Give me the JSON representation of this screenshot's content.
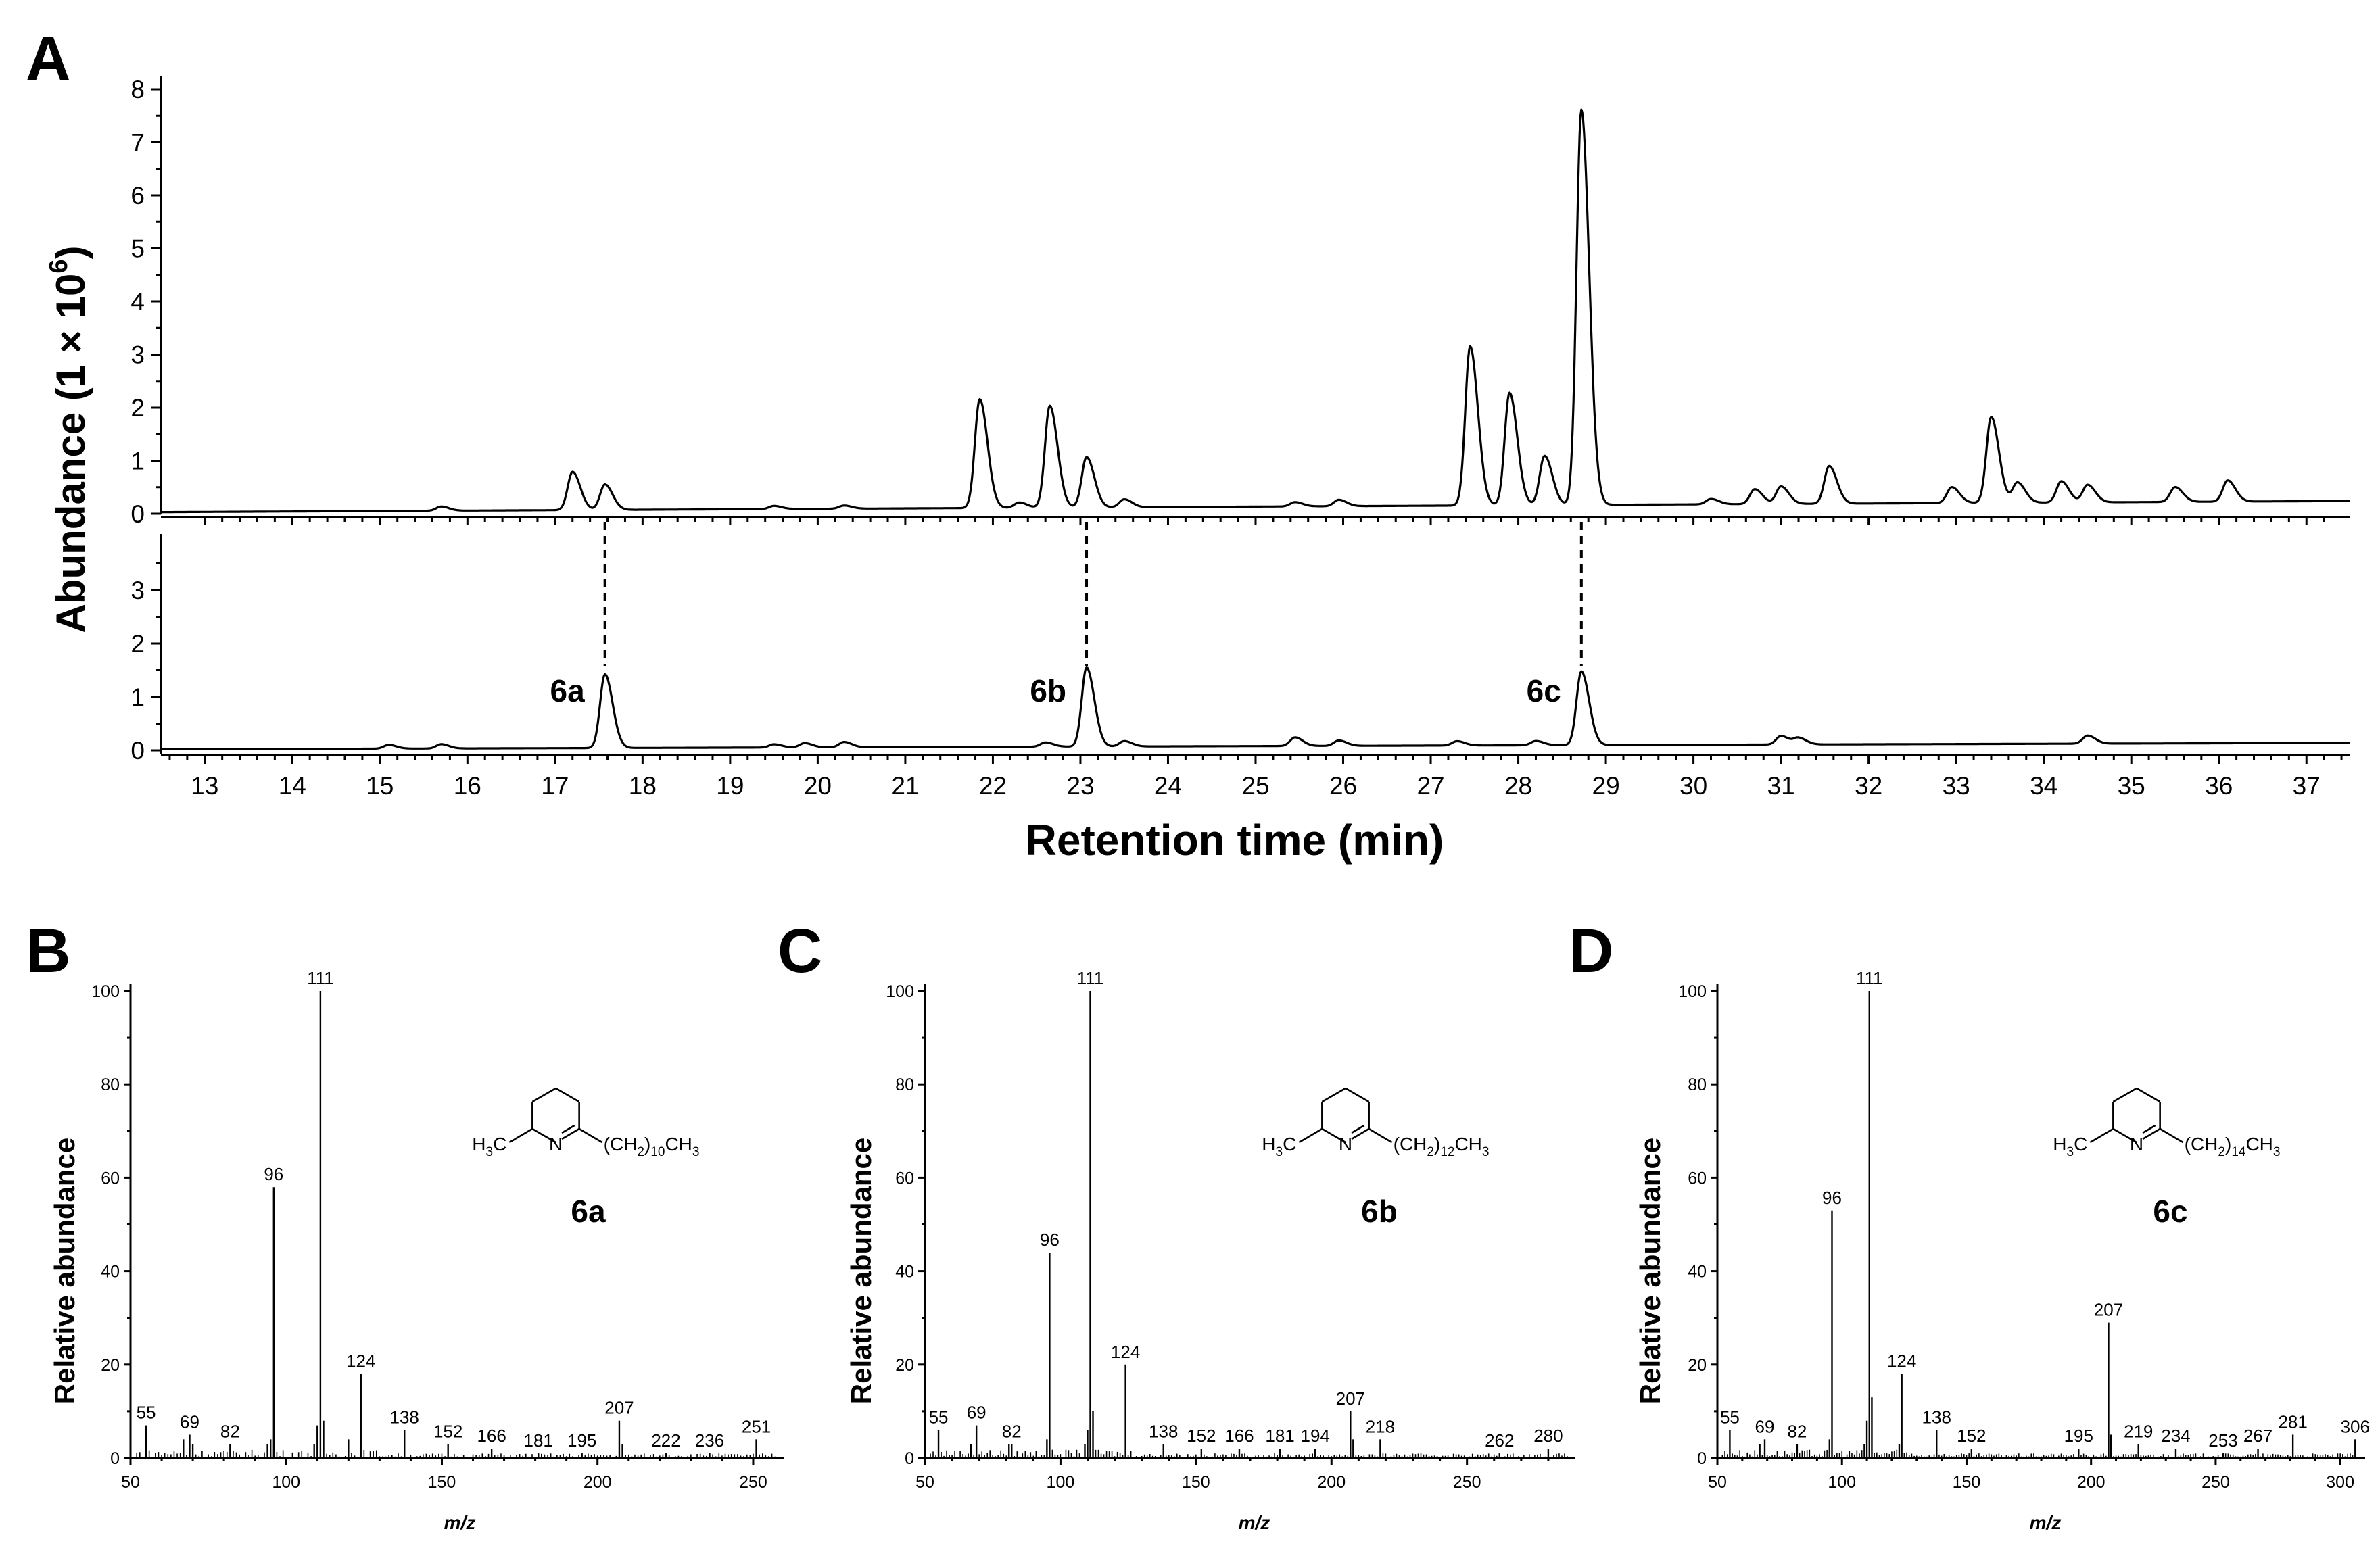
{
  "panels": {
    "A": "A",
    "B": "B",
    "C": "C",
    "D": "D"
  },
  "chart_data": [
    {
      "type": "line",
      "panel": "A",
      "ylabel_main": "Abundance (1 × 10",
      "ylabel_sup": "6",
      "ylabel_end": ")",
      "xlabel": "Retention time (min)",
      "xlim": [
        12.5,
        37.5
      ],
      "xticks": [
        13,
        14,
        15,
        16,
        17,
        18,
        19,
        20,
        21,
        22,
        23,
        24,
        25,
        26,
        27,
        28,
        29,
        30,
        31,
        32,
        33,
        34,
        35,
        36,
        37
      ],
      "top_trace": {
        "ylim": [
          0,
          8.3
        ],
        "yticks": [
          0,
          1,
          2,
          3,
          4,
          5,
          6,
          7,
          8
        ],
        "baseline_start": 0.03,
        "baseline_end": 0.24,
        "peaks": [
          {
            "x": 15.7,
            "y": 0.08
          },
          {
            "x": 17.2,
            "y": 0.72
          },
          {
            "x": 17.57,
            "y": 0.48
          },
          {
            "x": 19.5,
            "y": 0.06
          },
          {
            "x": 20.3,
            "y": 0.06
          },
          {
            "x": 21.85,
            "y": 2.05
          },
          {
            "x": 22.3,
            "y": 0.1
          },
          {
            "x": 22.65,
            "y": 1.92
          },
          {
            "x": 23.07,
            "y": 0.95
          },
          {
            "x": 23.5,
            "y": 0.15
          },
          {
            "x": 25.45,
            "y": 0.08
          },
          {
            "x": 25.95,
            "y": 0.12
          },
          {
            "x": 27.45,
            "y": 3.0
          },
          {
            "x": 27.9,
            "y": 2.12
          },
          {
            "x": 28.3,
            "y": 0.93
          },
          {
            "x": 28.72,
            "y": 7.45
          },
          {
            "x": 30.2,
            "y": 0.1
          },
          {
            "x": 30.7,
            "y": 0.28
          },
          {
            "x": 31.0,
            "y": 0.33
          },
          {
            "x": 31.55,
            "y": 0.71
          },
          {
            "x": 32.95,
            "y": 0.3
          },
          {
            "x": 33.4,
            "y": 1.62
          },
          {
            "x": 33.7,
            "y": 0.38
          },
          {
            "x": 34.2,
            "y": 0.4
          },
          {
            "x": 34.5,
            "y": 0.33
          },
          {
            "x": 35.5,
            "y": 0.28
          },
          {
            "x": 36.1,
            "y": 0.4
          }
        ]
      },
      "bottom_trace": {
        "ylim": [
          0,
          3.8
        ],
        "yticks": [
          0,
          1,
          2,
          3
        ],
        "baseline_start": 0.02,
        "baseline_end": 0.14,
        "peaks": [
          {
            "x": 15.1,
            "y": 0.07
          },
          {
            "x": 15.7,
            "y": 0.08
          },
          {
            "x": 17.57,
            "y": 1.38
          },
          {
            "x": 19.5,
            "y": 0.06
          },
          {
            "x": 19.85,
            "y": 0.08
          },
          {
            "x": 20.3,
            "y": 0.1
          },
          {
            "x": 22.6,
            "y": 0.08
          },
          {
            "x": 23.07,
            "y": 1.48
          },
          {
            "x": 23.5,
            "y": 0.1
          },
          {
            "x": 25.45,
            "y": 0.16
          },
          {
            "x": 25.95,
            "y": 0.1
          },
          {
            "x": 27.3,
            "y": 0.08
          },
          {
            "x": 28.2,
            "y": 0.08
          },
          {
            "x": 28.72,
            "y": 1.38
          },
          {
            "x": 31.0,
            "y": 0.16
          },
          {
            "x": 31.2,
            "y": 0.12
          },
          {
            "x": 34.5,
            "y": 0.15
          }
        ]
      },
      "annotations": [
        {
          "label": "6a",
          "x": 17.57
        },
        {
          "label": "6b",
          "x": 23.07
        },
        {
          "label": "6c",
          "x": 28.72
        }
      ]
    },
    {
      "type": "bar",
      "panel": "B",
      "xlabel": "m/z",
      "ylabel": "Relative abundance",
      "xlim": [
        50,
        260
      ],
      "xticks": [
        50,
        100,
        150,
        200,
        250
      ],
      "ylim": [
        0,
        100
      ],
      "yticks": [
        0,
        20,
        40,
        60,
        80,
        100
      ],
      "compound": "6a",
      "chain_sub": "10",
      "peaks": [
        {
          "mz": 55,
          "v": 7,
          "label": "55"
        },
        {
          "mz": 67,
          "v": 4
        },
        {
          "mz": 69,
          "v": 5,
          "label": "69"
        },
        {
          "mz": 70,
          "v": 3
        },
        {
          "mz": 82,
          "v": 3,
          "label": "82"
        },
        {
          "mz": 94,
          "v": 3
        },
        {
          "mz": 95,
          "v": 4
        },
        {
          "mz": 96,
          "v": 58,
          "label": "96"
        },
        {
          "mz": 109,
          "v": 3
        },
        {
          "mz": 110,
          "v": 7
        },
        {
          "mz": 111,
          "v": 100,
          "label": "111"
        },
        {
          "mz": 112,
          "v": 8
        },
        {
          "mz": 120,
          "v": 4
        },
        {
          "mz": 124,
          "v": 18,
          "label": "124"
        },
        {
          "mz": 138,
          "v": 6,
          "label": "138"
        },
        {
          "mz": 152,
          "v": 3,
          "label": "152"
        },
        {
          "mz": 166,
          "v": 2,
          "label": "166"
        },
        {
          "mz": 181,
          "v": 1,
          "label": "181"
        },
        {
          "mz": 195,
          "v": 1,
          "label": "195"
        },
        {
          "mz": 207,
          "v": 8,
          "label": "207"
        },
        {
          "mz": 208,
          "v": 3
        },
        {
          "mz": 222,
          "v": 1,
          "label": "222"
        },
        {
          "mz": 236,
          "v": 1,
          "label": "236"
        },
        {
          "mz": 251,
          "v": 4,
          "label": "251"
        }
      ]
    },
    {
      "type": "bar",
      "panel": "C",
      "xlabel": "m/z",
      "ylabel": "Relative abundance",
      "xlim": [
        50,
        290
      ],
      "xticks": [
        50,
        100,
        150,
        200,
        250
      ],
      "ylim": [
        0,
        100
      ],
      "yticks": [
        0,
        20,
        40,
        60,
        80,
        100
      ],
      "compound": "6b",
      "chain_sub": "12",
      "peaks": [
        {
          "mz": 55,
          "v": 6,
          "label": "55"
        },
        {
          "mz": 67,
          "v": 3
        },
        {
          "mz": 69,
          "v": 7,
          "label": "69"
        },
        {
          "mz": 81,
          "v": 3
        },
        {
          "mz": 82,
          "v": 3,
          "label": "82"
        },
        {
          "mz": 95,
          "v": 4
        },
        {
          "mz": 96,
          "v": 44,
          "label": "96"
        },
        {
          "mz": 109,
          "v": 3
        },
        {
          "mz": 110,
          "v": 6
        },
        {
          "mz": 111,
          "v": 100,
          "label": "111"
        },
        {
          "mz": 112,
          "v": 10
        },
        {
          "mz": 124,
          "v": 20,
          "label": "124"
        },
        {
          "mz": 138,
          "v": 3,
          "label": "138"
        },
        {
          "mz": 152,
          "v": 2,
          "label": "152"
        },
        {
          "mz": 166,
          "v": 2,
          "label": "166"
        },
        {
          "mz": 181,
          "v": 2,
          "label": "181"
        },
        {
          "mz": 194,
          "v": 2,
          "label": "194"
        },
        {
          "mz": 207,
          "v": 10,
          "label": "207"
        },
        {
          "mz": 208,
          "v": 4
        },
        {
          "mz": 218,
          "v": 4,
          "label": "218"
        },
        {
          "mz": 262,
          "v": 1,
          "label": "262"
        },
        {
          "mz": 280,
          "v": 2,
          "label": "280"
        }
      ]
    },
    {
      "type": "bar",
      "panel": "D",
      "xlabel": "m/z",
      "ylabel": "Relative abundance",
      "xlim": [
        50,
        310
      ],
      "xticks": [
        50,
        100,
        150,
        200,
        250,
        300
      ],
      "ylim": [
        0,
        100
      ],
      "yticks": [
        0,
        20,
        40,
        60,
        80,
        100
      ],
      "compound": "6c",
      "chain_sub": "14",
      "peaks": [
        {
          "mz": 55,
          "v": 6,
          "label": "55"
        },
        {
          "mz": 67,
          "v": 3
        },
        {
          "mz": 69,
          "v": 4,
          "label": "69"
        },
        {
          "mz": 82,
          "v": 3,
          "label": "82"
        },
        {
          "mz": 95,
          "v": 4
        },
        {
          "mz": 96,
          "v": 53,
          "label": "96"
        },
        {
          "mz": 109,
          "v": 3
        },
        {
          "mz": 110,
          "v": 8
        },
        {
          "mz": 111,
          "v": 100,
          "label": "111"
        },
        {
          "mz": 112,
          "v": 13
        },
        {
          "mz": 123,
          "v": 3
        },
        {
          "mz": 124,
          "v": 18,
          "label": "124"
        },
        {
          "mz": 138,
          "v": 6,
          "label": "138"
        },
        {
          "mz": 152,
          "v": 2,
          "label": "152"
        },
        {
          "mz": 195,
          "v": 2,
          "label": "195"
        },
        {
          "mz": 207,
          "v": 29,
          "label": "207"
        },
        {
          "mz": 208,
          "v": 5
        },
        {
          "mz": 219,
          "v": 3,
          "label": "219"
        },
        {
          "mz": 234,
          "v": 2,
          "label": "234"
        },
        {
          "mz": 253,
          "v": 1,
          "label": "253"
        },
        {
          "mz": 267,
          "v": 2,
          "label": "267"
        },
        {
          "mz": 281,
          "v": 5,
          "label": "281"
        },
        {
          "mz": 306,
          "v": 4,
          "label": "306"
        }
      ]
    }
  ],
  "structure": {
    "left_group": "H₃C",
    "ring_atom": "N",
    "chain_prefix": "(CH",
    "chain_mid": ")",
    "chain_suffix": "CH",
    "chain_end_sub": "3",
    "h3c_main": "H",
    "h3c_sub": "3",
    "h3c_end": "C",
    "ch2_sub": "2"
  }
}
